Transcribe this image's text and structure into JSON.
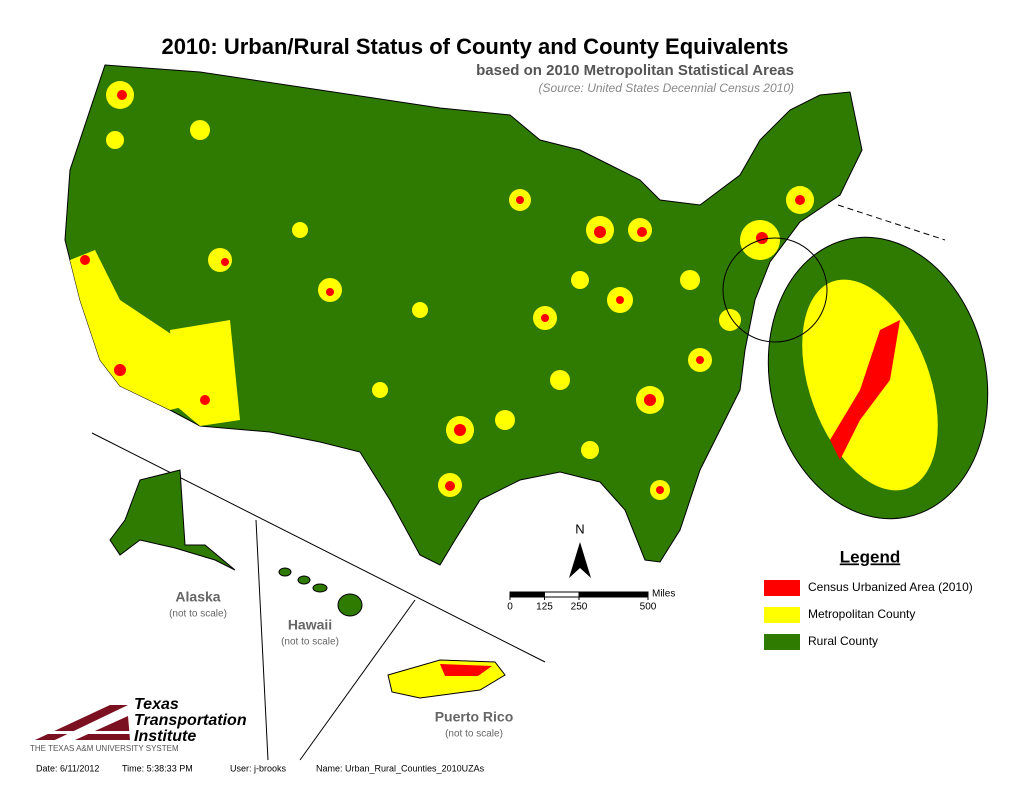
{
  "title": "2010: Urban/Rural Status of County and County Equivalents",
  "subtitle": "based on 2010 Metropolitan Statistical Areas",
  "source": "(Source: United States Decennial Census 2010)",
  "legend": {
    "title": "Legend",
    "items": [
      {
        "label": "Census Urbanized Area (2010)",
        "color": "#ff0000"
      },
      {
        "label": "Metropolitan County",
        "color": "#ffff00"
      },
      {
        "label": "Rural County",
        "color": "#2f7a00"
      }
    ]
  },
  "insets": [
    {
      "name": "Alaska",
      "note": "(not to scale)"
    },
    {
      "name": "Hawaii",
      "note": "(not to scale)"
    },
    {
      "name": "Puerto Rico",
      "note": "(not to scale)"
    }
  ],
  "north": "N",
  "scale_bar": {
    "unit": "Miles",
    "ticks": [
      0,
      125,
      250,
      500
    ]
  },
  "logo": {
    "lines": [
      "Texas",
      "Transportation",
      "Institute"
    ],
    "system": "THE TEXAS A&M UNIVERSITY SYSTEM"
  },
  "footer": [
    "Date: 6/11/2012",
    "Time: 5:38:33 PM",
    "User: j-brooks",
    "Name: Urban_Rural_Counties_2010UZAs"
  ]
}
